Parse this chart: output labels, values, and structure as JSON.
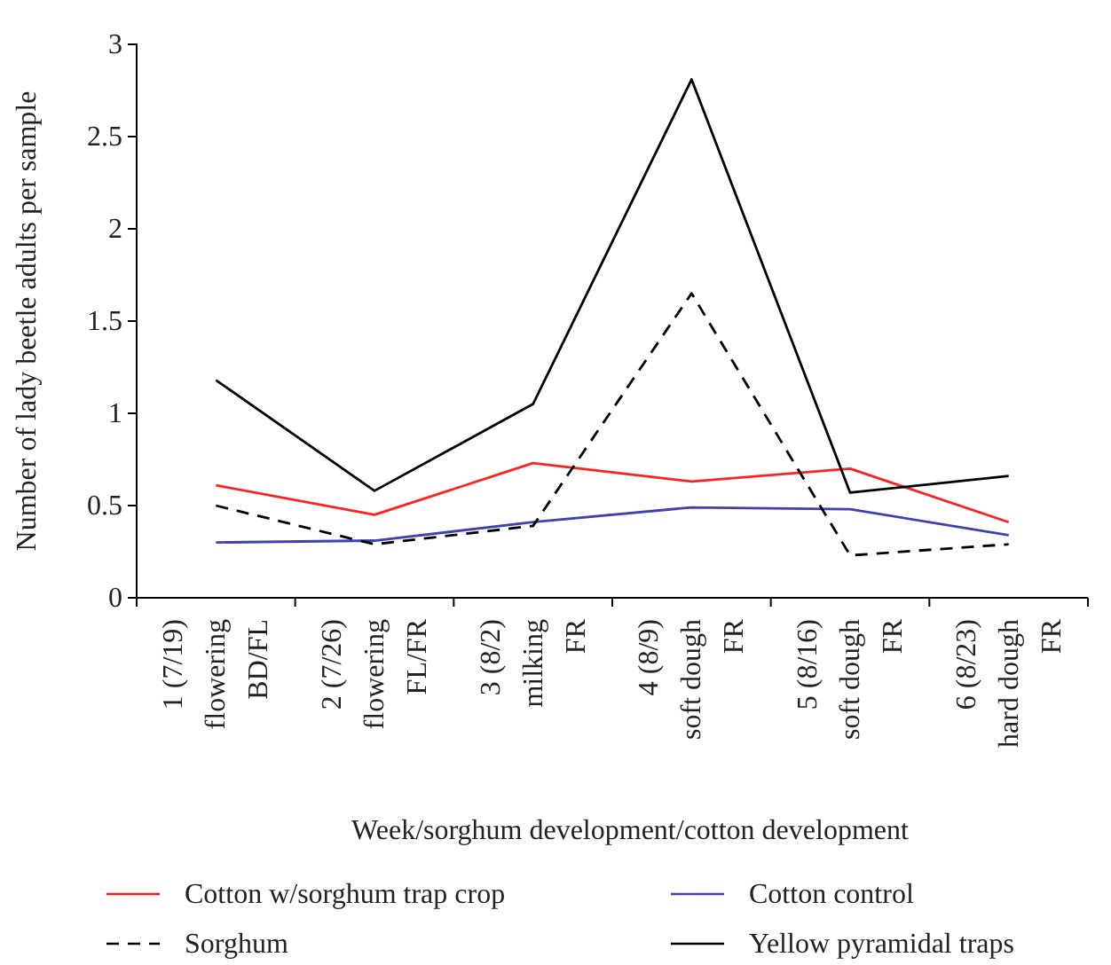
{
  "chart_data": {
    "type": "line",
    "xlabel": "Week/sorghum development/cotton development",
    "ylabel": "Number of  lady beetle adults per sample",
    "categories": [
      "1 (7/19)\nflowering\nBD/FL",
      "2 (7/26)\nflowering\nFL/FR",
      "3 (8/2)\nmilking\nFR",
      "4 (8/9)\nsoft dough\nFR",
      "5 (8/16)\nsoft dough\nFR",
      "6 (8/23)\nhard dough\nFR"
    ],
    "series": [
      {
        "name": "Cotton w/sorghum trap crop",
        "color": "#ff2020",
        "line_style": "solid",
        "values": [
          0.61,
          0.45,
          0.73,
          0.63,
          0.7,
          0.41
        ]
      },
      {
        "name": "Cotton control",
        "color": "#4040b0",
        "line_style": "solid",
        "values": [
          0.3,
          0.31,
          0.41,
          0.49,
          0.48,
          0.34
        ]
      },
      {
        "name": "Sorghum",
        "color": "#000000",
        "line_style": "dashed",
        "values": [
          0.5,
          0.29,
          0.39,
          1.65,
          0.23,
          0.29
        ]
      },
      {
        "name": "Yellow pyramidal traps",
        "color": "#000000",
        "line_style": "solid",
        "values": [
          1.18,
          0.58,
          1.05,
          2.81,
          0.57,
          0.66
        ]
      }
    ],
    "ylim": [
      0,
      3
    ],
    "yticks": [
      0,
      0.5,
      1,
      1.5,
      2,
      2.5,
      3
    ],
    "grid": false,
    "legend": "bottom",
    "marker": "none"
  }
}
